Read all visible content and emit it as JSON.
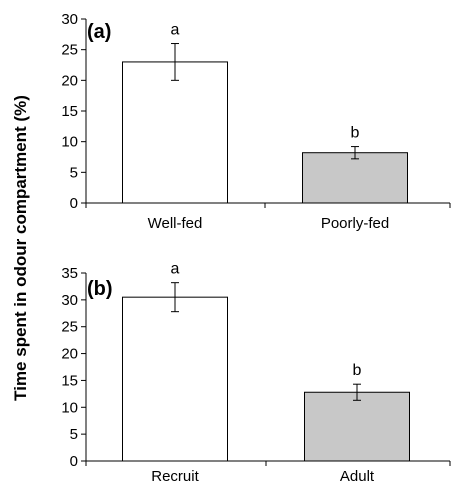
{
  "ylabel": "Time spent in odour compartment (%)",
  "chart_data": [
    {
      "type": "bar",
      "panel_label": "(a)",
      "categories": [
        "Well-fed",
        "Poorly-fed"
      ],
      "values": [
        23,
        8.2
      ],
      "errors": [
        3.0,
        1.0
      ],
      "significance": [
        "a",
        "b"
      ],
      "bar_colors": [
        "#ffffff",
        "#c8c8c8"
      ],
      "ylim": [
        0,
        30
      ],
      "yticks": [
        0,
        5,
        10,
        15,
        20,
        25,
        30
      ]
    },
    {
      "type": "bar",
      "panel_label": "(b)",
      "categories": [
        "Recruit",
        "Adult"
      ],
      "values": [
        30.5,
        12.8
      ],
      "errors": [
        2.7,
        1.5
      ],
      "significance": [
        "a",
        "b"
      ],
      "bar_colors": [
        "#ffffff",
        "#c8c8c8"
      ],
      "ylim": [
        0,
        35
      ],
      "yticks": [
        0,
        5,
        10,
        15,
        20,
        25,
        30,
        35
      ]
    }
  ]
}
